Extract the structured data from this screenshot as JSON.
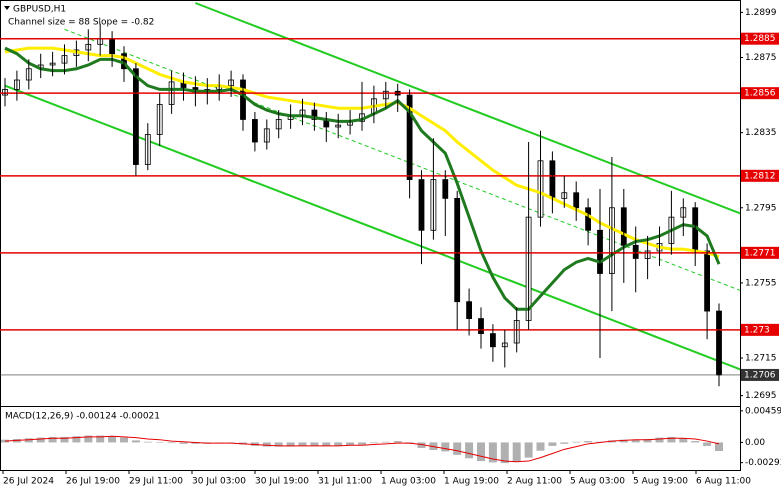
{
  "chart_data": {
    "type": "candlestick",
    "title": "GBPUSD,H1",
    "subtitle": "Channel size = 88 Slope = -0.82",
    "categories": [
      "26 Jul 2024",
      "26 Jul 19:00",
      "29 Jul 11:00",
      "30 Jul 03:00",
      "30 Jul 19:00",
      "31 Jul 11:00",
      "1 Aug 03:00",
      "1 Aug 19:00",
      "2 Aug 11:00",
      "5 Aug 03:00",
      "5 Aug 19:00",
      "6 Aug 11:00"
    ],
    "open": [
      1.2855,
      1.2858,
      1.2863,
      1.2869,
      1.2871,
      1.2872,
      1.2876,
      1.2879,
      1.2882,
      1.2885,
      1.2877,
      1.2869,
      1.2818,
      1.2834,
      1.285,
      1.2862,
      1.2859,
      1.2856,
      1.2858,
      1.286,
      1.2863,
      1.2842,
      1.283,
      1.2837,
      1.2842,
      1.2844,
      1.2847,
      1.2842,
      1.2838,
      1.2839,
      1.2841,
      1.2845,
      1.2853,
      1.2857,
      1.2855,
      1.281,
      1.2783,
      1.281,
      1.28,
      1.2745,
      1.2736,
      1.2728,
      1.2721,
      1.2723,
      1.2735,
      1.279,
      1.282,
      1.28,
      1.2803,
      1.2795,
      1.2783,
      1.276,
      1.2795,
      1.2775,
      1.2768,
      1.2772,
      1.2776,
      1.279,
      1.2795,
      1.2772,
      1.274
    ],
    "high": [
      1.2864,
      1.2868,
      1.2874,
      1.2877,
      1.2878,
      1.2882,
      1.2884,
      1.289,
      1.2893,
      1.2889,
      1.2881,
      1.2872,
      1.284,
      1.2856,
      1.2868,
      1.2867,
      1.2865,
      1.2864,
      1.2866,
      1.2868,
      1.2866,
      1.2846,
      1.2842,
      1.2847,
      1.285,
      1.2853,
      1.2851,
      1.2846,
      1.2845,
      1.2847,
      1.2862,
      1.286,
      1.2862,
      1.2861,
      1.2858,
      1.2815,
      1.2832,
      1.2815,
      1.2804,
      1.2752,
      1.2742,
      1.2733,
      1.273,
      1.2742,
      1.283,
      1.2836,
      1.2825,
      1.2812,
      1.2809,
      1.28,
      1.2805,
      1.2822,
      1.2805,
      1.2785,
      1.278,
      1.2785,
      1.2804,
      1.28,
      1.2798,
      1.2776,
      1.2744
    ],
    "low": [
      1.2849,
      1.2852,
      1.2858,
      1.2864,
      1.2865,
      1.2866,
      1.287,
      1.2873,
      1.2876,
      1.287,
      1.2862,
      1.2812,
      1.2815,
      1.2828,
      1.2845,
      1.2852,
      1.2849,
      1.285,
      1.2852,
      1.2854,
      1.2836,
      1.2825,
      1.2826,
      1.2832,
      1.2837,
      1.2839,
      1.2836,
      1.283,
      1.2832,
      1.2834,
      1.2836,
      1.284,
      1.2848,
      1.2846,
      1.28,
      1.2765,
      1.2778,
      1.278,
      1.273,
      1.2727,
      1.272,
      1.2713,
      1.271,
      1.2718,
      1.273,
      1.2785,
      1.2792,
      1.2795,
      1.2788,
      1.2775,
      1.2715,
      1.274,
      1.2755,
      1.275,
      1.2757,
      1.2764,
      1.277,
      1.278,
      1.2764,
      1.2725,
      1.27
    ],
    "close": [
      1.2858,
      1.2863,
      1.2869,
      1.2871,
      1.2872,
      1.2876,
      1.2879,
      1.2882,
      1.2885,
      1.2877,
      1.2869,
      1.2818,
      1.2834,
      1.285,
      1.2862,
      1.2859,
      1.2856,
      1.2858,
      1.286,
      1.2863,
      1.2842,
      1.283,
      1.2837,
      1.2842,
      1.2844,
      1.2847,
      1.2842,
      1.2838,
      1.2839,
      1.2841,
      1.2845,
      1.2853,
      1.2857,
      1.2855,
      1.281,
      1.2783,
      1.281,
      1.28,
      1.2745,
      1.2736,
      1.2728,
      1.2721,
      1.2723,
      1.2735,
      1.279,
      1.282,
      1.28,
      1.2803,
      1.2795,
      1.2783,
      1.276,
      1.2795,
      1.2775,
      1.2768,
      1.2772,
      1.2776,
      1.279,
      1.2795,
      1.2772,
      1.274,
      1.2706
    ],
    "candle_color": "#000000",
    "lines": [
      {
        "color": "#ffee00",
        "values": [
          1.2878,
          1.2879,
          1.288,
          1.288,
          1.288,
          1.2879,
          1.2878,
          1.2877,
          1.2876,
          1.2876,
          1.2875,
          1.2872,
          1.2869,
          1.2866,
          1.2864,
          1.2862,
          1.2861,
          1.286,
          1.286,
          1.2859,
          1.2858,
          1.2856,
          1.2854,
          1.2853,
          1.2852,
          1.2851,
          1.285,
          1.2849,
          1.2848,
          1.2848,
          1.2848,
          1.2849,
          1.285,
          1.2851,
          1.2848,
          1.2844,
          1.284,
          1.2836,
          1.283,
          1.2825,
          1.282,
          1.2815,
          1.2811,
          1.2807,
          1.2805,
          1.2803,
          1.28,
          1.2797,
          1.2794,
          1.2791,
          1.2787,
          1.2784,
          1.2781,
          1.2778,
          1.2776,
          1.2774,
          1.2773,
          1.2773,
          1.2772,
          1.2771,
          1.2769
        ]
      },
      {
        "color": "#1f7a1f",
        "values": [
          1.288,
          1.2877,
          1.2872,
          1.2869,
          1.2868,
          1.2868,
          1.2869,
          1.2871,
          1.2874,
          1.2874,
          1.2872,
          1.2865,
          1.286,
          1.2858,
          1.2858,
          1.2858,
          1.2857,
          1.2857,
          1.2857,
          1.2858,
          1.2855,
          1.285,
          1.2847,
          1.2845,
          1.2844,
          1.2844,
          1.2843,
          1.2842,
          1.2841,
          1.2841,
          1.2842,
          1.2845,
          1.2848,
          1.2852,
          1.2846,
          1.2836,
          1.283,
          1.2824,
          1.2808,
          1.279,
          1.2772,
          1.2758,
          1.2747,
          1.2741,
          1.2741,
          1.2748,
          1.2755,
          1.2762,
          1.2766,
          1.2768,
          1.2766,
          1.277,
          1.2774,
          1.2777,
          1.2778,
          1.278,
          1.2783,
          1.2786,
          1.2785,
          1.278,
          1.2765
        ]
      }
    ],
    "channels": [
      {
        "color": "#22cc22",
        "dashed": false,
        "points": [
          [
            16,
            1.2904
          ],
          [
            63,
            1.2789
          ]
        ]
      },
      {
        "color": "#22cc22",
        "dashed": false,
        "points": [
          [
            0,
            1.286
          ],
          [
            63,
            1.2706
          ]
        ]
      },
      {
        "color": "#22cc22",
        "dashed": true,
        "points": [
          [
            5,
            1.289
          ],
          [
            63,
            1.2748
          ]
        ]
      }
    ],
    "ylim": [
      1.269,
      1.2904
    ],
    "yticks": [
      1.2899,
      1.2875,
      1.2835,
      1.2795,
      1.2755,
      1.2715,
      1.2695
    ],
    "level_color": "#e60000",
    "levels": [
      {
        "value": 1.2885
      },
      {
        "value": 1.2856
      },
      {
        "value": 1.2812
      },
      {
        "value": 1.2771
      },
      {
        "value": 1.273
      }
    ],
    "current_price": {
      "value": 1.2706,
      "color": "#333333"
    },
    "macd": {
      "title": "MACD(12,26,9) -0.00124 -0.00021",
      "histogram_color": "#b0b0b0",
      "signal_color": "#e60000",
      "histogram": [
        0.0004,
        0.0005,
        0.0006,
        0.0007,
        0.0008,
        0.0008,
        0.0009,
        0.001,
        0.001,
        0.0009,
        0.0007,
        0.0003,
        0.0001,
        0.0,
        -0.0001,
        -0.0002,
        -0.0002,
        -0.0002,
        -0.0001,
        -0.0001,
        -0.0003,
        -0.0005,
        -0.0006,
        -0.0006,
        -0.0006,
        -0.0005,
        -0.0005,
        -0.0005,
        -0.0005,
        -0.0004,
        -0.0003,
        -0.0001,
        0.0001,
        0.0002,
        -0.0002,
        -0.0008,
        -0.0011,
        -0.0013,
        -0.0018,
        -0.0023,
        -0.0027,
        -0.0029,
        -0.003,
        -0.0028,
        -0.0022,
        -0.0012,
        -0.0005,
        -0.0002,
        0.0001,
        0.0002,
        0.0001,
        0.0003,
        0.0004,
        0.0004,
        0.0005,
        0.0007,
        0.0008,
        0.0006,
        0.0002,
        -0.0005,
        -0.00124
      ],
      "signal": [
        0.0002,
        0.0003,
        0.0004,
        0.0005,
        0.0006,
        0.0006,
        0.0007,
        0.0008,
        0.0008,
        0.0009,
        0.0008,
        0.0007,
        0.0005,
        0.0004,
        0.0002,
        0.0001,
        0.0,
        -0.0001,
        -0.0001,
        -0.0001,
        -0.0002,
        -0.0003,
        -0.0004,
        -0.0005,
        -0.0005,
        -0.0005,
        -0.0005,
        -0.0005,
        -0.0005,
        -0.0004,
        -0.0004,
        -0.0003,
        -0.0002,
        -0.0001,
        -0.0001,
        -0.0003,
        -0.0006,
        -0.0009,
        -0.0012,
        -0.0016,
        -0.002,
        -0.0024,
        -0.0027,
        -0.0028,
        -0.0027,
        -0.0022,
        -0.0016,
        -0.001,
        -0.0006,
        -0.0002,
        0.0,
        0.0002,
        0.0003,
        0.0004,
        0.0004,
        0.0005,
        0.0006,
        0.0006,
        0.0005,
        0.0002,
        -0.00021
      ],
      "ylim": [
        -0.004,
        0.005
      ],
      "yticks": [
        0.00459,
        {
          "value": 0,
          "label": "0.00"
        },
        -0.00293
      ]
    }
  }
}
